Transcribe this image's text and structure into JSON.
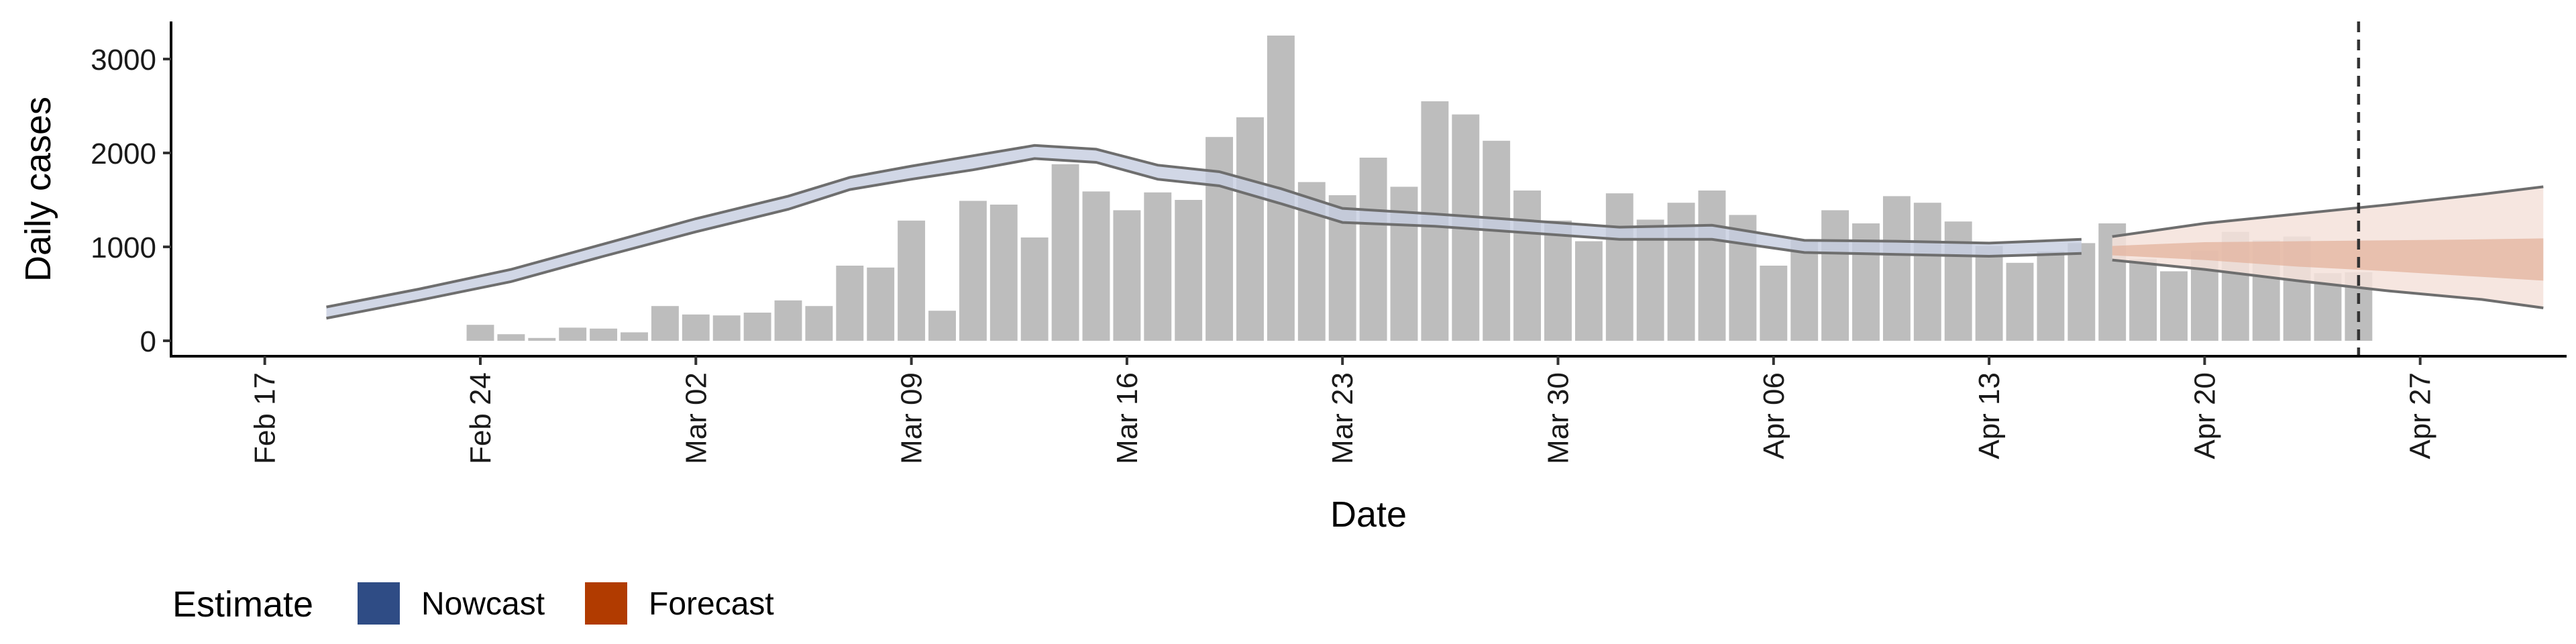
{
  "chart_data": {
    "type": "bar",
    "xlabel": "Date",
    "ylabel": "Daily cases",
    "ylim": [
      0,
      3400
    ],
    "y_ticks": [
      0,
      1000,
      2000,
      3000
    ],
    "y_tick_labels": [
      "0",
      "1000",
      "2000",
      "3000"
    ],
    "x_range": [
      "2020-02-14",
      "2020-05-01"
    ],
    "x_ticks": [
      "2020-02-17",
      "2020-02-24",
      "2020-03-02",
      "2020-03-09",
      "2020-03-16",
      "2020-03-23",
      "2020-03-30",
      "2020-04-06",
      "2020-04-13",
      "2020-04-20",
      "2020-04-27"
    ],
    "x_tick_labels": [
      "Feb 17",
      "Feb 24",
      "Mar 02",
      "Mar 09",
      "Mar 16",
      "Mar 23",
      "Mar 30",
      "Apr 06",
      "Apr 13",
      "Apr 20",
      "Apr 27"
    ],
    "reference_line_date": "2020-04-25",
    "grid": false,
    "legend_position": "bottom-left",
    "legend": {
      "title": "Estimate",
      "items": [
        {
          "label": "Nowcast",
          "color": "#2f4c85"
        },
        {
          "label": "Forecast",
          "color": "#b13b00"
        }
      ]
    },
    "colors": {
      "bar": "#bdbdbd",
      "nowcast_band": "#c6cde0",
      "nowcast_edge": "#6e6e6e",
      "forecast_outer": "#f4e2da",
      "forecast_inner": "#e3b39d",
      "reference_line": "#333333"
    },
    "bars": {
      "dates": [
        "2020-02-24",
        "2020-02-25",
        "2020-02-26",
        "2020-02-27",
        "2020-02-28",
        "2020-02-29",
        "2020-03-01",
        "2020-03-02",
        "2020-03-03",
        "2020-03-04",
        "2020-03-05",
        "2020-03-06",
        "2020-03-07",
        "2020-03-08",
        "2020-03-09",
        "2020-03-10",
        "2020-03-11",
        "2020-03-12",
        "2020-03-13",
        "2020-03-14",
        "2020-03-15",
        "2020-03-16",
        "2020-03-17",
        "2020-03-18",
        "2020-03-19",
        "2020-03-20",
        "2020-03-21",
        "2020-03-22",
        "2020-03-23",
        "2020-03-24",
        "2020-03-25",
        "2020-03-26",
        "2020-03-27",
        "2020-03-28",
        "2020-03-29",
        "2020-03-30",
        "2020-03-31",
        "2020-04-01",
        "2020-04-02",
        "2020-04-03",
        "2020-04-04",
        "2020-04-05",
        "2020-04-06",
        "2020-04-07",
        "2020-04-08",
        "2020-04-09",
        "2020-04-10",
        "2020-04-11",
        "2020-04-12",
        "2020-04-13",
        "2020-04-14",
        "2020-04-15",
        "2020-04-16",
        "2020-04-17",
        "2020-04-18",
        "2020-04-19",
        "2020-04-20",
        "2020-04-21",
        "2020-04-22",
        "2020-04-23",
        "2020-04-24",
        "2020-04-25"
      ],
      "values": [
        170,
        70,
        30,
        140,
        130,
        90,
        370,
        280,
        270,
        300,
        430,
        370,
        800,
        780,
        1280,
        320,
        1490,
        1450,
        1100,
        1880,
        1590,
        1390,
        1580,
        1500,
        2170,
        2380,
        3250,
        1690,
        1550,
        1950,
        1640,
        2550,
        2410,
        2130,
        1600,
        1280,
        1060,
        1570,
        1290,
        1470,
        1600,
        1340,
        800,
        1080,
        1390,
        1250,
        1540,
        1470,
        1270,
        1010,
        830,
        950,
        1040,
        1250,
        870,
        740,
        960,
        1160,
        1070,
        1110,
        720,
        730
      ]
    },
    "nowcast": {
      "dates": [
        "2020-02-19",
        "2020-02-22",
        "2020-02-25",
        "2020-02-28",
        "2020-03-02",
        "2020-03-05",
        "2020-03-07",
        "2020-03-09",
        "2020-03-11",
        "2020-03-13",
        "2020-03-15",
        "2020-03-17",
        "2020-03-19",
        "2020-03-21",
        "2020-03-23",
        "2020-03-26",
        "2020-03-29",
        "2020-04-01",
        "2020-04-04",
        "2020-04-07",
        "2020-04-10",
        "2020-04-13",
        "2020-04-16"
      ],
      "upper": [
        360,
        550,
        760,
        1030,
        1300,
        1540,
        1740,
        1860,
        1970,
        2080,
        2040,
        1870,
        1800,
        1620,
        1410,
        1350,
        1280,
        1210,
        1230,
        1070,
        1060,
        1040,
        1080
      ],
      "lower": [
        240,
        430,
        630,
        900,
        1160,
        1400,
        1610,
        1720,
        1820,
        1940,
        1900,
        1720,
        1650,
        1460,
        1260,
        1220,
        1150,
        1080,
        1080,
        940,
        920,
        900,
        930
      ]
    },
    "forecast": {
      "dates": [
        "2020-04-17",
        "2020-04-20",
        "2020-04-23",
        "2020-04-26",
        "2020-04-29",
        "2020-05-01"
      ],
      "outer_upper": [
        1110,
        1250,
        1350,
        1450,
        1560,
        1640
      ],
      "outer_lower": [
        860,
        760,
        640,
        530,
        440,
        350
      ],
      "inner_upper": [
        1010,
        1050,
        1060,
        1070,
        1080,
        1090
      ],
      "inner_lower": [
        910,
        860,
        790,
        740,
        680,
        640
      ]
    }
  }
}
